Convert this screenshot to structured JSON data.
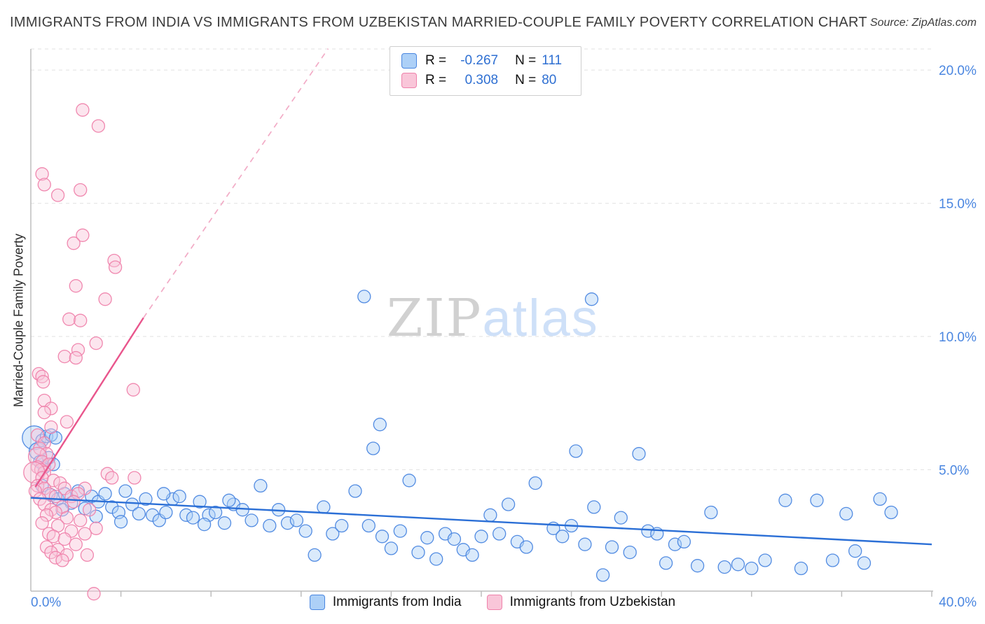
{
  "header": {
    "title": "IMMIGRANTS FROM INDIA VS IMMIGRANTS FROM UZBEKISTAN MARRIED-COUPLE FAMILY POVERTY CORRELATION CHART",
    "source_prefix": "Source:",
    "source_name": "ZipAtlas.com"
  },
  "watermark": {
    "part1": "ZIP",
    "part2": "atlas"
  },
  "correlation_legend": {
    "rows": [
      {
        "r_label": "R =",
        "r_value": "-0.267",
        "n_label": "N =",
        "n_value": "111"
      },
      {
        "r_label": "R =",
        "r_value": "0.308",
        "n_label": "N =",
        "n_value": "80"
      }
    ]
  },
  "chart_data": {
    "type": "scatter",
    "title": "Immigrants from India vs Immigrants from Uzbekistan Married-Couple Family Poverty Correlation",
    "ylabel": "Married-Couple Family Poverty",
    "x_min_label": "0.0%",
    "x_max_label": "40.0%",
    "xlim": [
      0,
      40
    ],
    "ylim": [
      0,
      21
    ],
    "x_tick_step": 4,
    "grid": "horizontal-dashed",
    "tick_color": "#4a86e0",
    "y_ticks": [
      {
        "value": 5,
        "label": "5.0%"
      },
      {
        "value": 10,
        "label": "10.0%"
      },
      {
        "value": 15,
        "label": "15.0%"
      },
      {
        "value": 20,
        "label": "20.0%"
      }
    ],
    "series": [
      {
        "id": "india",
        "name": "Immigrants from India",
        "R": -0.267,
        "N": 111,
        "color": "#4a86e0",
        "fill": "#add0f7",
        "trend_color": "#2b6fd6",
        "trend": {
          "x1": 0,
          "y1": 3.95,
          "x2": 40,
          "y2": 2.2,
          "style": "solid"
        },
        "points": [
          [
            0.15,
            6.2,
            17
          ],
          [
            0.3,
            5.7,
            12
          ],
          [
            0.5,
            6.1
          ],
          [
            0.7,
            6.25
          ],
          [
            0.9,
            6.3
          ],
          [
            1.1,
            6.2
          ],
          [
            0.4,
            5.3
          ],
          [
            0.6,
            5.1
          ],
          [
            0.8,
            5.45
          ],
          [
            1.0,
            5.2
          ],
          [
            0.5,
            4.4
          ],
          [
            0.9,
            4.05
          ],
          [
            1.2,
            3.9
          ],
          [
            1.5,
            4.1
          ],
          [
            1.8,
            3.75
          ],
          [
            2.1,
            4.2
          ],
          [
            2.4,
            3.55
          ],
          [
            2.7,
            4.0
          ],
          [
            3.0,
            3.8
          ],
          [
            3.3,
            4.1
          ],
          [
            3.6,
            3.6
          ],
          [
            3.9,
            3.4
          ],
          [
            4.2,
            4.2
          ],
          [
            4.5,
            3.7
          ],
          [
            4.8,
            3.35
          ],
          [
            5.1,
            3.9
          ],
          [
            5.4,
            3.3
          ],
          [
            5.7,
            3.1
          ],
          [
            6.0,
            3.4
          ],
          [
            6.3,
            3.9
          ],
          [
            6.6,
            4.0
          ],
          [
            6.9,
            3.3
          ],
          [
            7.2,
            3.2
          ],
          [
            7.5,
            3.8
          ],
          [
            7.9,
            3.3
          ],
          [
            8.2,
            3.4
          ],
          [
            8.6,
            3.0
          ],
          [
            9.0,
            3.7
          ],
          [
            9.4,
            3.5
          ],
          [
            9.8,
            3.1
          ],
          [
            10.2,
            4.4
          ],
          [
            10.6,
            2.9
          ],
          [
            11.0,
            3.5
          ],
          [
            11.4,
            3.0
          ],
          [
            11.8,
            3.1
          ],
          [
            12.2,
            2.7
          ],
          [
            12.6,
            1.8
          ],
          [
            13.0,
            3.6
          ],
          [
            13.4,
            2.6
          ],
          [
            13.8,
            2.9
          ],
          [
            14.8,
            11.5
          ],
          [
            15.5,
            6.7
          ],
          [
            15.2,
            5.8
          ],
          [
            14.4,
            4.2
          ],
          [
            15.0,
            2.9
          ],
          [
            15.6,
            2.5
          ],
          [
            16.0,
            2.05
          ],
          [
            16.4,
            2.7
          ],
          [
            16.8,
            4.6
          ],
          [
            17.2,
            1.9
          ],
          [
            17.6,
            2.45
          ],
          [
            18.0,
            1.65
          ],
          [
            18.4,
            2.6
          ],
          [
            18.8,
            2.4
          ],
          [
            19.2,
            2.0
          ],
          [
            19.6,
            1.8
          ],
          [
            20.0,
            2.5
          ],
          [
            20.4,
            3.3
          ],
          [
            20.8,
            2.6
          ],
          [
            21.2,
            3.7
          ],
          [
            21.6,
            2.3
          ],
          [
            22.0,
            2.1
          ],
          [
            22.4,
            4.5
          ],
          [
            24.9,
            11.4
          ],
          [
            23.2,
            2.8
          ],
          [
            23.6,
            2.5
          ],
          [
            24.0,
            2.9
          ],
          [
            24.2,
            5.7
          ],
          [
            24.6,
            2.2
          ],
          [
            25.0,
            3.6
          ],
          [
            25.4,
            1.05
          ],
          [
            25.8,
            2.1
          ],
          [
            26.2,
            3.2
          ],
          [
            26.6,
            1.9
          ],
          [
            27.0,
            5.6
          ],
          [
            27.4,
            2.7
          ],
          [
            27.8,
            2.6
          ],
          [
            28.2,
            1.5
          ],
          [
            28.6,
            2.2
          ],
          [
            29.0,
            2.3
          ],
          [
            29.6,
            1.4
          ],
          [
            30.2,
            3.4
          ],
          [
            30.8,
            1.35
          ],
          [
            31.4,
            1.45
          ],
          [
            32.0,
            1.3
          ],
          [
            32.6,
            1.6
          ],
          [
            33.5,
            3.85
          ],
          [
            34.2,
            1.3
          ],
          [
            34.9,
            3.85
          ],
          [
            35.6,
            1.6
          ],
          [
            36.2,
            3.35
          ],
          [
            36.6,
            1.95
          ],
          [
            37.0,
            1.5
          ],
          [
            37.7,
            3.9
          ],
          [
            38.2,
            3.4
          ],
          [
            1.4,
            3.5
          ],
          [
            2.9,
            3.25
          ],
          [
            4.0,
            3.05
          ],
          [
            5.9,
            4.1
          ],
          [
            7.7,
            2.95
          ],
          [
            8.8,
            3.85
          ]
        ]
      },
      {
        "id": "uzbekistan",
        "name": "Immigrants from Uzbekistan",
        "R": 0.308,
        "N": 80,
        "color": "#ef82ab",
        "fill": "#f9c6d9",
        "trend_color": "#e9558c",
        "trend_dash_color": "#f2abc6",
        "trend": {
          "x1": 0.2,
          "y1": 4.35,
          "x2": 5.0,
          "y2": 10.7,
          "style": "solid",
          "extension": {
            "x2": 13.2,
            "y2": 20.8,
            "style": "dashed"
          }
        },
        "points": [
          [
            2.3,
            18.5
          ],
          [
            3.0,
            17.9
          ],
          [
            0.5,
            16.1
          ],
          [
            0.6,
            15.7
          ],
          [
            2.2,
            15.5
          ],
          [
            1.2,
            15.3
          ],
          [
            2.3,
            13.8
          ],
          [
            1.9,
            13.5
          ],
          [
            3.7,
            12.85
          ],
          [
            3.75,
            12.6
          ],
          [
            2.0,
            11.9
          ],
          [
            3.3,
            11.4
          ],
          [
            1.7,
            10.65
          ],
          [
            2.2,
            10.6
          ],
          [
            2.9,
            9.75
          ],
          [
            2.1,
            9.5
          ],
          [
            1.5,
            9.25
          ],
          [
            2.0,
            9.2
          ],
          [
            0.35,
            8.6
          ],
          [
            0.5,
            8.5
          ],
          [
            0.55,
            8.3
          ],
          [
            4.55,
            8.0
          ],
          [
            0.6,
            7.6
          ],
          [
            0.9,
            7.3
          ],
          [
            0.6,
            7.15
          ],
          [
            1.6,
            6.8
          ],
          [
            0.9,
            6.6
          ],
          [
            0.3,
            6.3
          ],
          [
            0.6,
            6.0
          ],
          [
            0.4,
            5.8
          ],
          [
            0.7,
            5.6
          ],
          [
            0.3,
            5.5,
            13
          ],
          [
            0.5,
            5.3
          ],
          [
            0.8,
            5.2
          ],
          [
            0.3,
            5.1
          ],
          [
            0.45,
            5.0
          ],
          [
            0.6,
            4.9
          ],
          [
            0.15,
            4.9,
            15
          ],
          [
            0.5,
            4.7
          ],
          [
            1.0,
            4.6
          ],
          [
            1.3,
            4.5
          ],
          [
            0.3,
            4.4
          ],
          [
            0.6,
            4.3
          ],
          [
            1.5,
            4.3
          ],
          [
            0.2,
            4.2
          ],
          [
            0.8,
            4.1
          ],
          [
            1.1,
            4.0
          ],
          [
            1.8,
            4.0
          ],
          [
            0.4,
            3.9
          ],
          [
            2.4,
            4.3
          ],
          [
            2.1,
            4.1
          ],
          [
            1.9,
            3.8
          ],
          [
            0.6,
            3.7
          ],
          [
            1.4,
            3.6
          ],
          [
            0.9,
            3.5
          ],
          [
            2.6,
            3.5
          ],
          [
            1.1,
            3.4
          ],
          [
            0.7,
            3.3
          ],
          [
            1.6,
            3.2
          ],
          [
            2.2,
            3.1
          ],
          [
            0.5,
            3.0
          ],
          [
            1.2,
            2.9
          ],
          [
            2.9,
            2.8
          ],
          [
            1.8,
            2.7
          ],
          [
            0.8,
            2.6
          ],
          [
            2.4,
            2.6
          ],
          [
            1.0,
            2.5
          ],
          [
            1.5,
            2.4
          ],
          [
            2.0,
            2.2
          ],
          [
            0.7,
            2.1
          ],
          [
            1.2,
            2.0
          ],
          [
            0.9,
            1.9
          ],
          [
            1.6,
            1.8
          ],
          [
            1.1,
            1.7
          ],
          [
            1.4,
            1.6
          ],
          [
            2.5,
            1.8
          ],
          [
            3.4,
            4.85
          ],
          [
            3.6,
            4.7
          ],
          [
            2.8,
            0.35
          ],
          [
            4.6,
            4.7
          ]
        ]
      }
    ]
  }
}
